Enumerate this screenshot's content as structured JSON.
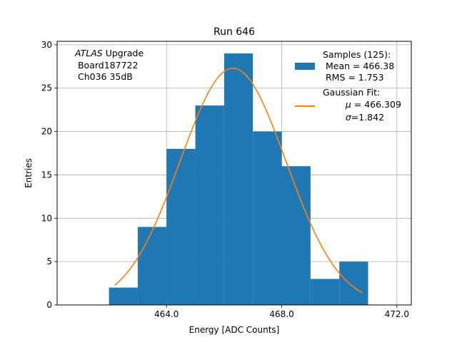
{
  "chart_data": {
    "type": "bar",
    "title": "Run 646",
    "xlabel": "Energy [ADC Counts]",
    "ylabel": "Entries",
    "xlim": [
      460.2,
      472.5
    ],
    "ylim": [
      0,
      30.4
    ],
    "grid": true,
    "xticks": [
      464.0,
      468.0,
      472.0
    ],
    "xtick_labels": [
      "464.0",
      "468.0",
      "472.0"
    ],
    "yticks": [
      0,
      5,
      10,
      15,
      20,
      25,
      30
    ],
    "ytick_labels": [
      "0",
      "5",
      "10",
      "15",
      "20",
      "25",
      "30"
    ],
    "bin_edges": [
      462,
      463,
      464,
      465,
      466,
      467,
      468,
      469,
      470,
      471
    ],
    "values": [
      2,
      9,
      18,
      23,
      29,
      20,
      16,
      3,
      5
    ],
    "bar_color": "#1f77b4",
    "fit": {
      "label": "Gaussian Fit:",
      "mu": 466.309,
      "sigma": 1.842,
      "amplitude": 27.3,
      "x_range": [
        462.2,
        470.8
      ],
      "color": "#ff7f0e"
    },
    "annotation": {
      "italic": "ATLAS",
      "rest": " Upgrade",
      "line2": " Board187722",
      "line3": " Ch036 35dB"
    },
    "legend": {
      "position": "top-right",
      "samples_title": "Samples (125):",
      "samples_mean": " Mean = 466.38",
      "samples_rms": " RMS = 1.753",
      "fit_title": "Gaussian Fit:",
      "fit_mu_sym": "μ",
      "fit_mu_val": " = 466.309",
      "fit_sigma_sym": "σ",
      "fit_sigma_val": "=1.842"
    }
  }
}
